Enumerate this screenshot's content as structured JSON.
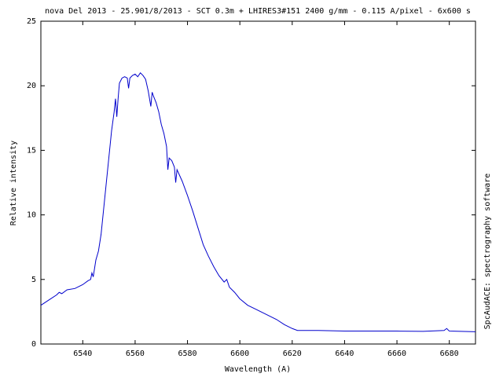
{
  "chart_data": {
    "type": "line",
    "title": "nova Del 2013 - 25.901/8/2013 - SCT 0.3m + LHIRES3#151 2400 g/mm - 0.115 A/pixel - 6x600 s",
    "x_label": "Wavelength (A)",
    "y_label": "Relative intensity",
    "side_note": "SpcAudACE: spectrography software",
    "xlim": [
      6524,
      6690
    ],
    "ylim": [
      0,
      25
    ],
    "xticks": [
      6540,
      6560,
      6580,
      6600,
      6620,
      6640,
      6660,
      6680
    ],
    "yticks": [
      0,
      5,
      10,
      15,
      20,
      25
    ],
    "series": [
      {
        "color": "#0000cc",
        "x": [
          6524,
          6527,
          6530,
          6531,
          6532,
          6534,
          6537,
          6540,
          6542,
          6543,
          6543.5,
          6544,
          6545,
          6546,
          6547,
          6548,
          6549,
          6550,
          6551,
          6552,
          6552.5,
          6553,
          6553.5,
          6554,
          6555,
          6556,
          6557,
          6557.5,
          6558,
          6559,
          6560,
          6561,
          6562,
          6563,
          6564,
          6565,
          6566,
          6566.5,
          6567,
          6568,
          6569,
          6570,
          6571,
          6572,
          6572.5,
          6573,
          6574,
          6575,
          6575.5,
          6576,
          6578,
          6580,
          6582,
          6584,
          6586,
          6588,
          6590,
          6592,
          6594,
          6595,
          6596,
          6598,
          6600,
          6603,
          6606,
          6610,
          6614,
          6617,
          6620,
          6622,
          6630,
          6640,
          6650,
          6660,
          6670,
          6678,
          6679,
          6680,
          6690
        ],
        "values": [
          3.0,
          3.4,
          3.8,
          4.0,
          3.9,
          4.2,
          4.3,
          4.6,
          4.9,
          5.0,
          5.5,
          5.2,
          6.5,
          7.2,
          8.5,
          10.5,
          12.5,
          14.5,
          16.5,
          18.0,
          19.0,
          17.6,
          19.0,
          20.2,
          20.6,
          20.7,
          20.6,
          19.8,
          20.6,
          20.8,
          20.9,
          20.7,
          21.0,
          20.8,
          20.5,
          19.6,
          18.4,
          19.5,
          19.2,
          18.7,
          18.0,
          17.0,
          16.3,
          15.3,
          13.5,
          14.4,
          14.2,
          13.7,
          12.5,
          13.5,
          12.6,
          11.5,
          10.3,
          9.0,
          7.7,
          6.8,
          6.0,
          5.3,
          4.8,
          5.0,
          4.4,
          4.0,
          3.5,
          3.0,
          2.7,
          2.3,
          1.9,
          1.5,
          1.2,
          1.05,
          1.05,
          1.0,
          1.0,
          1.0,
          0.98,
          1.05,
          1.2,
          1.0,
          0.95
        ]
      }
    ]
  }
}
